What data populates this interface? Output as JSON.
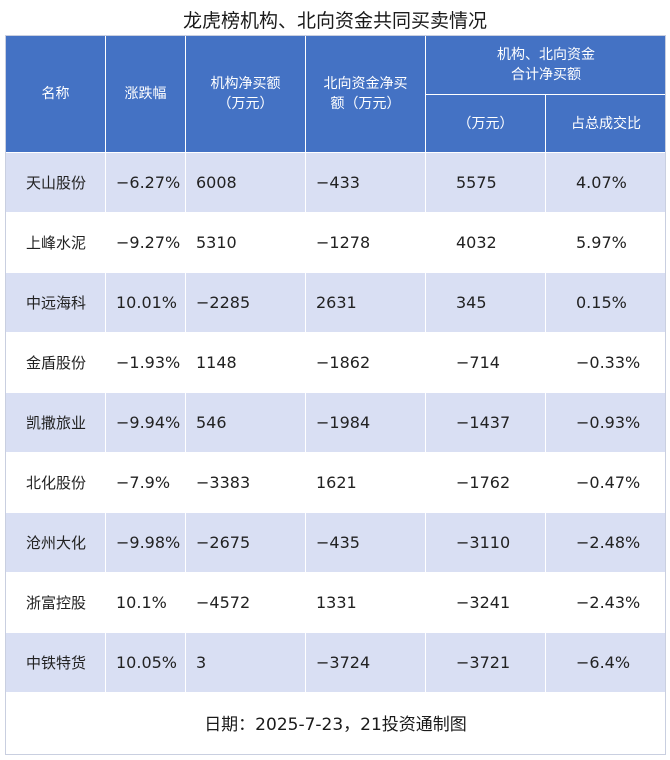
{
  "title": "龙虎榜机构、北向资金共同买卖情况",
  "header": {
    "name": "名称",
    "change": "涨跌幅",
    "inst_l1": "机构净买额",
    "inst_l2": "（万元）",
    "north_l1": "北向资金净买",
    "north_l2": "额（万元）",
    "combined_l1": "机构、北向资金",
    "combined_l2": "合计净买额",
    "combined_sub_amount": "（万元）",
    "combined_sub_ratio": "占总成交比"
  },
  "rows": [
    {
      "name": "天山股份",
      "change": "−6.27%",
      "inst": "6008",
      "north": "−433",
      "total": "5575",
      "ratio": "4.07%"
    },
    {
      "name": "上峰水泥",
      "change": "−9.27%",
      "inst": "5310",
      "north": "−1278",
      "total": "4032",
      "ratio": "5.97%"
    },
    {
      "name": "中远海科",
      "change": "10.01%",
      "inst": "−2285",
      "north": "2631",
      "total": "345",
      "ratio": "0.15%"
    },
    {
      "name": "金盾股份",
      "change": "−1.93%",
      "inst": "1148",
      "north": "−1862",
      "total": "−714",
      "ratio": "−0.33%"
    },
    {
      "name": "凯撒旅业",
      "change": "−9.94%",
      "inst": "546",
      "north": "−1984",
      "total": "−1437",
      "ratio": "−0.93%"
    },
    {
      "name": "北化股份",
      "change": "−7.9%",
      "inst": "−3383",
      "north": "1621",
      "total": "−1762",
      "ratio": "−0.47%"
    },
    {
      "name": "沧州大化",
      "change": "−9.98%",
      "inst": "−2675",
      "north": "−435",
      "total": "−3110",
      "ratio": "−2.48%"
    },
    {
      "name": "浙富控股",
      "change": "10.1%",
      "inst": "−4572",
      "north": "1331",
      "total": "−3241",
      "ratio": "−2.43%"
    },
    {
      "name": "中铁特货",
      "change": "10.05%",
      "inst": "3",
      "north": "−3724",
      "total": "−3721",
      "ratio": "−6.4%"
    }
  ],
  "footer": "日期：2025-7-23，21投资通制图",
  "colors": {
    "header_bg": "#4472c4",
    "band_bg": "#d9dff3"
  }
}
